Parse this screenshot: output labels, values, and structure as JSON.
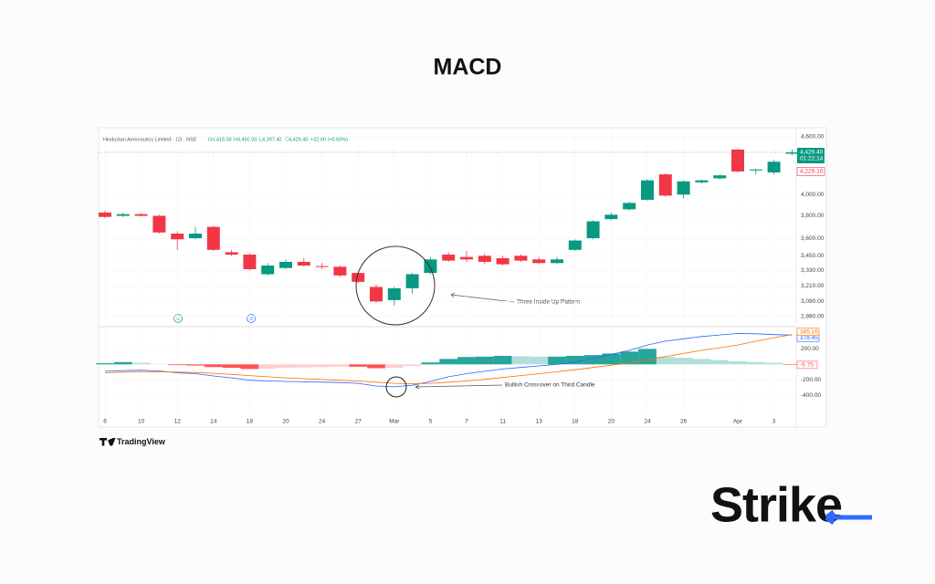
{
  "title": "MACD",
  "brand": "Strike",
  "watermark": "TradingView",
  "chart_data": [
    {
      "type": "candlestick",
      "symbol": "Hindustan Aeronautics Limited · 1D · NSE",
      "ohlc_labels": [
        "O4,415.00",
        "H4,460.00",
        "L4,397.40",
        "C4,429.40",
        "+22.00 (+0.50%)"
      ],
      "categories": [
        "6",
        null,
        "10",
        null,
        "12",
        null,
        "14",
        null,
        "18",
        null,
        "20",
        null,
        "24",
        null,
        "27",
        null,
        "Mar",
        null,
        "5",
        null,
        "7",
        null,
        "11",
        null,
        "13",
        null,
        "18",
        null,
        "20",
        null,
        "24",
        null,
        "26",
        null,
        null,
        "Apr",
        null,
        "3",
        null
      ],
      "open": [
        3830,
        3800,
        3815,
        3800,
        3640,
        3600,
        3700,
        3480,
        3460,
        3300,
        3350,
        3400,
        3365,
        3360,
        3310,
        3200,
        3100,
        3190,
        3310,
        3460,
        3440,
        3450,
        3430,
        3450,
        3420,
        3390,
        3500,
        3600,
        3770,
        3860,
        3950,
        4200,
        4000,
        4120,
        4160,
        4460,
        4240,
        4220,
        4415
      ],
      "high": [
        3850,
        3830,
        3825,
        3810,
        3660,
        3700,
        3710,
        3500,
        3470,
        3390,
        3420,
        3430,
        3390,
        3370,
        3320,
        3220,
        3200,
        3310,
        3440,
        3480,
        3490,
        3470,
        3450,
        3460,
        3440,
        3440,
        3590,
        3760,
        3830,
        3930,
        4150,
        4210,
        4140,
        4150,
        4200,
        4470,
        4260,
        4350,
        4460
      ],
      "low": [
        3780,
        3790,
        3795,
        3640,
        3500,
        3590,
        3490,
        3450,
        3330,
        3290,
        3340,
        3360,
        3340,
        3280,
        3230,
        3080,
        3060,
        3150,
        3300,
        3400,
        3400,
        3380,
        3370,
        3400,
        3380,
        3380,
        3490,
        3590,
        3760,
        3850,
        3940,
        3980,
        3960,
        4110,
        4150,
        4220,
        4200,
        4200,
        4397.4
      ],
      "close": [
        3790,
        3815,
        3800,
        3650,
        3590,
        3640,
        3500,
        3460,
        3340,
        3370,
        3400,
        3370,
        3360,
        3290,
        3240,
        3090,
        3190,
        3300,
        3420,
        3410,
        3420,
        3400,
        3380,
        3410,
        3390,
        3420,
        3580,
        3750,
        3810,
        3920,
        4140,
        3990,
        4130,
        4140,
        4190,
        4230,
        4250,
        4330,
        4429.4
      ],
      "up_color": "#089981",
      "down_color": "#f23645",
      "log_scale": true,
      "ylim": [
        2920,
        4670
      ],
      "yticks": [
        {
          "value": 4600,
          "label": "4,600.00"
        },
        {
          "value": 4000,
          "label": "4,000.00"
        },
        {
          "value": 3800,
          "label": "3,800.00"
        },
        {
          "value": 3600,
          "label": "3,600.00"
        },
        {
          "value": 3450,
          "label": "3,450.00"
        },
        {
          "value": 3330,
          "label": "3,330.00"
        },
        {
          "value": 3210,
          "label": "3,210.00"
        },
        {
          "value": 3090,
          "label": "3,090.00"
        },
        {
          "value": 2980,
          "label": "2,980.00"
        }
      ],
      "last_price": {
        "value": 4429.4,
        "label": "4,429.40"
      },
      "countdown": "01:22:14",
      "ref_price": {
        "value": 4229.1,
        "label": "4,229.10"
      },
      "event_markers": [
        "E",
        "D"
      ],
      "annotation": "Three Inside Up Pattern"
    },
    {
      "type": "macd",
      "histogram": [
        15,
        30,
        20,
        5,
        -10,
        -15,
        -35,
        -45,
        -60,
        -55,
        -45,
        -40,
        -35,
        -30,
        -30,
        -50,
        -45,
        -20,
        25,
        70,
        95,
        100,
        110,
        105,
        100,
        100,
        110,
        120,
        140,
        165,
        200,
        95,
        85,
        70,
        55,
        40,
        30,
        20,
        -6.75
      ],
      "histogram_label": "-6.75",
      "histogram_colors": {
        "up": "#26a69a",
        "up_fading": "#b2dfdb",
        "down": "#ff5252",
        "down_fading": "#ffcdd2"
      },
      "series": [
        {
          "name": "MACD",
          "color": "#2962ff",
          "last_label": "378.45",
          "values": [
            -90,
            -80,
            -75,
            -85,
            -110,
            -120,
            -150,
            -175,
            -205,
            -215,
            -220,
            -225,
            -230,
            -235,
            -245,
            -280,
            -290,
            -270,
            -220,
            -160,
            -120,
            -90,
            -60,
            -40,
            -20,
            0,
            30,
            80,
            130,
            180,
            250,
            300,
            330,
            360,
            380,
            400,
            395,
            385,
            378.45
          ]
        },
        {
          "name": "Signal",
          "color": "#ff6d00",
          "last_label": "385.16",
          "values": [
            -110,
            -100,
            -95,
            -95,
            -100,
            -105,
            -115,
            -130,
            -145,
            -160,
            -175,
            -185,
            -195,
            -205,
            -215,
            -230,
            -245,
            -250,
            -245,
            -230,
            -215,
            -195,
            -170,
            -145,
            -120,
            -95,
            -70,
            -40,
            -10,
            20,
            60,
            100,
            140,
            180,
            215,
            250,
            300,
            345,
            385.16
          ]
        }
      ],
      "ylim": [
        -480,
        440
      ],
      "yticks": [
        {
          "value": 200,
          "label": "200.00"
        },
        {
          "value": -200,
          "label": "-200.00"
        },
        {
          "value": -400,
          "label": "-400.00"
        }
      ],
      "annotation": "Bullish Crossover on Third Candle"
    }
  ]
}
